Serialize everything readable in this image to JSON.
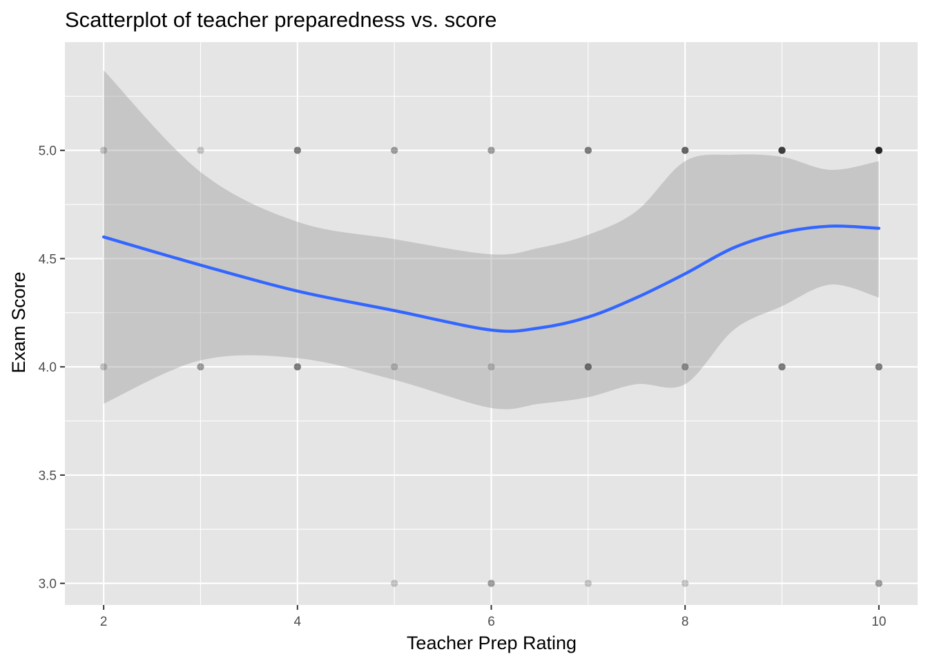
{
  "chart_data": {
    "type": "scatter",
    "title": "Scatterplot of teacher preparedness vs. score",
    "xlabel": "Teacher Prep Rating",
    "ylabel": "Exam Score",
    "xlim": [
      1.6,
      10.4
    ],
    "ylim": [
      2.9,
      5.5
    ],
    "x_ticks": [
      2,
      4,
      6,
      8,
      10
    ],
    "x_tick_labels": [
      "2",
      "4",
      "6",
      "8",
      "10"
    ],
    "y_ticks": [
      3.0,
      3.5,
      4.0,
      4.5,
      5.0
    ],
    "y_tick_labels": [
      "3.0",
      "3.5",
      "4.0",
      "4.5",
      "5.0"
    ],
    "grid": true,
    "legend": "none",
    "points": [
      {
        "x": 2,
        "y": 5,
        "count": 1
      },
      {
        "x": 2,
        "y": 4,
        "count": 1
      },
      {
        "x": 3,
        "y": 5,
        "count": 1
      },
      {
        "x": 3,
        "y": 4,
        "count": 2
      },
      {
        "x": 4,
        "y": 5,
        "count": 3
      },
      {
        "x": 4,
        "y": 4,
        "count": 3
      },
      {
        "x": 5,
        "y": 5,
        "count": 2
      },
      {
        "x": 5,
        "y": 4,
        "count": 1
      },
      {
        "x": 5,
        "y": 3,
        "count": 1
      },
      {
        "x": 6,
        "y": 5,
        "count": 2
      },
      {
        "x": 6,
        "y": 4,
        "count": 1
      },
      {
        "x": 6,
        "y": 3,
        "count": 2
      },
      {
        "x": 7,
        "y": 5,
        "count": 3
      },
      {
        "x": 7,
        "y": 4,
        "count": 3
      },
      {
        "x": 7,
        "y": 3,
        "count": 1
      },
      {
        "x": 8,
        "y": 5,
        "count": 4
      },
      {
        "x": 8,
        "y": 4,
        "count": 2
      },
      {
        "x": 8,
        "y": 3,
        "count": 1
      },
      {
        "x": 9,
        "y": 5,
        "count": 6
      },
      {
        "x": 9,
        "y": 4,
        "count": 3
      },
      {
        "x": 10,
        "y": 5,
        "count": 8
      },
      {
        "x": 10,
        "y": 4,
        "count": 3
      },
      {
        "x": 10,
        "y": 3,
        "count": 2
      }
    ],
    "smooth": {
      "method": "loess",
      "x": [
        2,
        3,
        4,
        5,
        6,
        6.5,
        7,
        7.5,
        8,
        8.5,
        9,
        9.5,
        10
      ],
      "y": [
        4.6,
        4.47,
        4.35,
        4.26,
        4.17,
        4.18,
        4.23,
        4.32,
        4.43,
        4.55,
        4.62,
        4.65,
        4.64
      ],
      "lower": [
        3.83,
        4.03,
        4.04,
        3.94,
        3.81,
        3.83,
        3.86,
        3.92,
        3.92,
        4.17,
        4.28,
        4.38,
        4.32
      ],
      "upper": [
        5.37,
        4.9,
        4.67,
        4.59,
        4.52,
        4.55,
        4.61,
        4.72,
        4.95,
        4.98,
        4.97,
        4.91,
        4.95
      ],
      "line_color": "#3366FF",
      "band_color": "#999999"
    },
    "colors": {
      "panel": "#E5E5E5",
      "grid": "#FFFFFF",
      "point": "#000000"
    }
  }
}
